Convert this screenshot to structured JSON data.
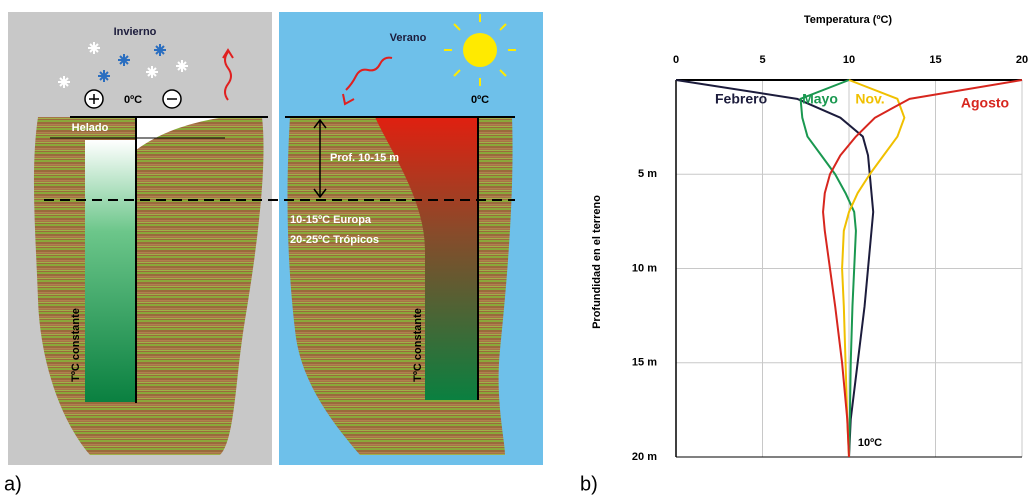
{
  "diagram": {
    "winter": {
      "title": "Invierno",
      "zero": "0ºC",
      "frozen": "Helado",
      "constant": "TºC constante"
    },
    "summer": {
      "title": "Verano",
      "zero": "0ºC",
      "depth": "Prof. 10-15 m",
      "europe": "10-15ºC Europa",
      "tropics": "20-25ºC Trópicos",
      "constant": "TºC constante"
    },
    "panel_a": "a)",
    "panel_b": "b)"
  },
  "chart_data": {
    "type": "line",
    "x_label": "Temperatura (ºC)",
    "y_label": "Profundidad en el terreno",
    "annotation": "10ºC",
    "depth": [
      0,
      1,
      2,
      3,
      4,
      5,
      6,
      7,
      8,
      10,
      12,
      15,
      18,
      20
    ],
    "series": [
      {
        "name": "Febrero",
        "color": "#1c1c3c",
        "values": [
          0,
          7,
          9.5,
          10.8,
          11.1,
          11.2,
          11.3,
          11.4,
          11.3,
          11.1,
          10.9,
          10.5,
          10.1,
          10
        ]
      },
      {
        "name": "Mayo",
        "color": "#1a9850",
        "values": [
          10,
          7.2,
          7.3,
          7.6,
          8.4,
          9.2,
          9.8,
          10.3,
          10.4,
          10.3,
          10.2,
          10.1,
          10.05,
          10
        ]
      },
      {
        "name": "Nov.",
        "color": "#f0c000",
        "values": [
          10,
          12.8,
          13.2,
          12.8,
          12,
          11.2,
          10.5,
          10,
          9.7,
          9.6,
          9.7,
          9.8,
          9.9,
          10
        ]
      },
      {
        "name": "Agosto",
        "color": "#d7261e",
        "values": [
          20,
          13.5,
          11.5,
          10.4,
          9.5,
          8.9,
          8.6,
          8.5,
          8.6,
          8.9,
          9.2,
          9.6,
          9.9,
          10
        ]
      }
    ],
    "xlim": [
      0,
      20
    ],
    "xticks": [
      0,
      5,
      10,
      15,
      20
    ],
    "ylim": [
      0,
      20
    ],
    "yticks": [
      {
        "value": 5,
        "label": "5 m"
      },
      {
        "value": 10,
        "label": "10 m"
      },
      {
        "value": 15,
        "label": "15 m"
      },
      {
        "value": 20,
        "label": "20 m"
      }
    ],
    "y_inverted": true,
    "grid": true
  }
}
